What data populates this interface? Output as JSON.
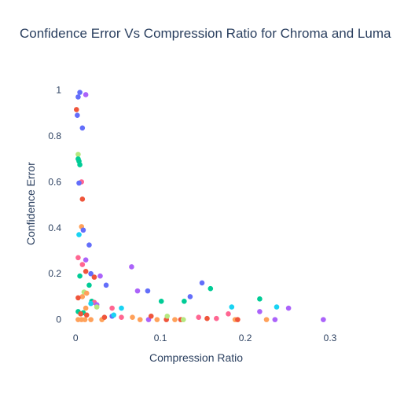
{
  "chart_data": {
    "type": "scatter",
    "title": "Confidence Error Vs Compression Ratio for Chroma and Luma",
    "xlabel": "Compression Ratio",
    "ylabel": "Confidence Error",
    "xlim": [
      -0.015,
      0.3
    ],
    "ylim": [
      -0.08,
      1.05
    ],
    "xticks": [
      0,
      0.1,
      0.2,
      0.3
    ],
    "xtick_labels": [
      "0",
      "0.1",
      "0.2",
      "0.3"
    ],
    "yticks": [
      0,
      0.2,
      0.4,
      0.6,
      0.8,
      1
    ],
    "ytick_labels": [
      "0",
      "0.2",
      "0.4",
      "0.6",
      "0.8",
      "1"
    ],
    "grid": false,
    "legend": "none",
    "colors": [
      "#636efa",
      "#EF553B",
      "#00cc96",
      "#ab63fa",
      "#FFA15A",
      "#19d3f3",
      "#FF6692",
      "#B6E880"
    ],
    "points": [
      {
        "x": 0.005,
        "y": 0.99,
        "c": 0
      },
      {
        "x": 0.012,
        "y": 0.98,
        "c": 3
      },
      {
        "x": 0.003,
        "y": 0.97,
        "c": 0
      },
      {
        "x": 0.001,
        "y": 0.915,
        "c": 1
      },
      {
        "x": 0.002,
        "y": 0.89,
        "c": 0
      },
      {
        "x": 0.008,
        "y": 0.835,
        "c": 0
      },
      {
        "x": 0.003,
        "y": 0.72,
        "c": 7
      },
      {
        "x": 0.003,
        "y": 0.7,
        "c": 2
      },
      {
        "x": 0.004,
        "y": 0.69,
        "c": 2
      },
      {
        "x": 0.005,
        "y": 0.675,
        "c": 2
      },
      {
        "x": 0.007,
        "y": 0.6,
        "c": 6
      },
      {
        "x": 0.004,
        "y": 0.595,
        "c": 0
      },
      {
        "x": 0.008,
        "y": 0.525,
        "c": 1
      },
      {
        "x": 0.007,
        "y": 0.405,
        "c": 4
      },
      {
        "x": 0.009,
        "y": 0.39,
        "c": 0
      },
      {
        "x": 0.004,
        "y": 0.37,
        "c": 5
      },
      {
        "x": 0.016,
        "y": 0.325,
        "c": 0
      },
      {
        "x": 0.003,
        "y": 0.27,
        "c": 6
      },
      {
        "x": 0.012,
        "y": 0.26,
        "c": 3
      },
      {
        "x": 0.008,
        "y": 0.24,
        "c": 6
      },
      {
        "x": 0.012,
        "y": 0.21,
        "c": 1
      },
      {
        "x": 0.018,
        "y": 0.2,
        "c": 0
      },
      {
        "x": 0.029,
        "y": 0.19,
        "c": 3
      },
      {
        "x": 0.005,
        "y": 0.19,
        "c": 2
      },
      {
        "x": 0.022,
        "y": 0.185,
        "c": 1
      },
      {
        "x": 0.016,
        "y": 0.15,
        "c": 2
      },
      {
        "x": 0.036,
        "y": 0.15,
        "c": 0
      },
      {
        "x": 0.01,
        "y": 0.12,
        "c": 7
      },
      {
        "x": 0.013,
        "y": 0.115,
        "c": 4
      },
      {
        "x": 0.008,
        "y": 0.1,
        "c": 4
      },
      {
        "x": 0.003,
        "y": 0.095,
        "c": 1
      },
      {
        "x": 0.019,
        "y": 0.08,
        "c": 2
      },
      {
        "x": 0.022,
        "y": 0.075,
        "c": 6
      },
      {
        "x": 0.025,
        "y": 0.065,
        "c": 3
      },
      {
        "x": 0.018,
        "y": 0.07,
        "c": 5
      },
      {
        "x": 0.012,
        "y": 0.05,
        "c": 4
      },
      {
        "x": 0.003,
        "y": 0.035,
        "c": 2
      },
      {
        "x": 0.009,
        "y": 0.03,
        "c": 2
      },
      {
        "x": 0.006,
        "y": 0.025,
        "c": 1
      },
      {
        "x": 0.013,
        "y": 0.02,
        "c": 1
      },
      {
        "x": 0.025,
        "y": 0.055,
        "c": 7
      },
      {
        "x": 0.003,
        "y": 0.0,
        "c": 4
      },
      {
        "x": 0.007,
        "y": 0.0,
        "c": 4
      },
      {
        "x": 0.011,
        "y": 0.0,
        "c": 4
      },
      {
        "x": 0.018,
        "y": 0.0,
        "c": 4
      },
      {
        "x": 0.031,
        "y": 0.0,
        "c": 4
      },
      {
        "x": 0.034,
        "y": 0.01,
        "c": 1
      },
      {
        "x": 0.043,
        "y": 0.05,
        "c": 6
      },
      {
        "x": 0.043,
        "y": 0.015,
        "c": 0
      },
      {
        "x": 0.045,
        "y": 0.02,
        "c": 5
      },
      {
        "x": 0.054,
        "y": 0.05,
        "c": 5
      },
      {
        "x": 0.054,
        "y": 0.01,
        "c": 6
      },
      {
        "x": 0.066,
        "y": 0.23,
        "c": 3
      },
      {
        "x": 0.067,
        "y": 0.01,
        "c": 4
      },
      {
        "x": 0.073,
        "y": 0.125,
        "c": 3
      },
      {
        "x": 0.076,
        "y": 0.0,
        "c": 4
      },
      {
        "x": 0.085,
        "y": 0.125,
        "c": 0
      },
      {
        "x": 0.086,
        "y": 0.0,
        "c": 3
      },
      {
        "x": 0.089,
        "y": 0.015,
        "c": 1
      },
      {
        "x": 0.096,
        "y": 0.0,
        "c": 4
      },
      {
        "x": 0.101,
        "y": 0.08,
        "c": 2
      },
      {
        "x": 0.107,
        "y": 0.0,
        "c": 1
      },
      {
        "x": 0.108,
        "y": 0.015,
        "c": 7
      },
      {
        "x": 0.117,
        "y": 0.0,
        "c": 4
      },
      {
        "x": 0.124,
        "y": 0.0,
        "c": 1
      },
      {
        "x": 0.127,
        "y": 0.0,
        "c": 7
      },
      {
        "x": 0.128,
        "y": 0.08,
        "c": 2
      },
      {
        "x": 0.135,
        "y": 0.1,
        "c": 0
      },
      {
        "x": 0.145,
        "y": 0.01,
        "c": 6
      },
      {
        "x": 0.149,
        "y": 0.16,
        "c": 0
      },
      {
        "x": 0.155,
        "y": 0.005,
        "c": 1
      },
      {
        "x": 0.159,
        "y": 0.135,
        "c": 2
      },
      {
        "x": 0.166,
        "y": 0.005,
        "c": 6
      },
      {
        "x": 0.18,
        "y": 0.025,
        "c": 6
      },
      {
        "x": 0.184,
        "y": 0.055,
        "c": 5
      },
      {
        "x": 0.188,
        "y": 0.0,
        "c": 4
      },
      {
        "x": 0.191,
        "y": 0.0,
        "c": 1
      },
      {
        "x": 0.217,
        "y": 0.09,
        "c": 2
      },
      {
        "x": 0.217,
        "y": 0.035,
        "c": 3
      },
      {
        "x": 0.225,
        "y": 0.0,
        "c": 4
      },
      {
        "x": 0.235,
        "y": 0.0,
        "c": 3
      },
      {
        "x": 0.237,
        "y": 0.055,
        "c": 5
      },
      {
        "x": 0.251,
        "y": 0.05,
        "c": 3
      },
      {
        "x": 0.292,
        "y": 0.0,
        "c": 3
      }
    ]
  }
}
